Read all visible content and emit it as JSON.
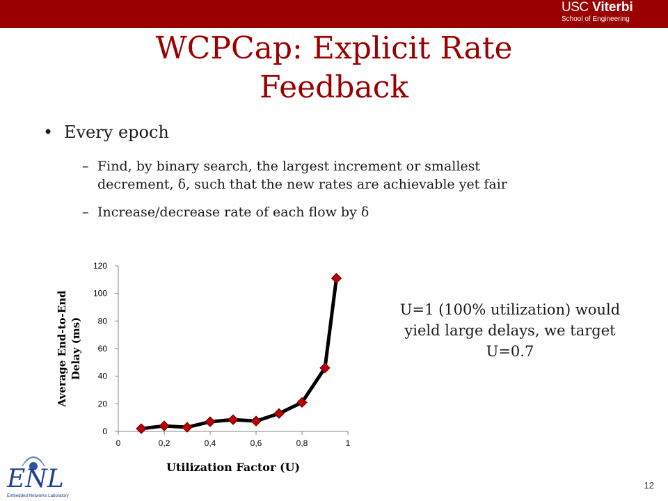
{
  "header": {
    "logo_usc": "USC",
    "logo_viterbi": "Viterbi",
    "logo_school": "School of Engineering"
  },
  "slide": {
    "title_line1": "WCPCap: Explicit Rate",
    "title_line2": "Feedback",
    "bullet1": "Every epoch",
    "sub1": "Find, by binary search, the largest increment or smallest decrement, δ, such that the new rates are achievable yet fair",
    "sub2": "Increase/decrease rate of each flow by δ",
    "dash": "–",
    "dot": "•",
    "note": "U=1 (100% utilization) would yield large delays, we target U=0.7",
    "page_number": "12"
  },
  "footer_logo": {
    "letters": "ENL",
    "caption": "Embedded Networks Laboratory"
  },
  "colors": {
    "brand": "#9b0000",
    "marker": "#c00000",
    "line": "#000000"
  },
  "chart_data": {
    "type": "line",
    "xlabel": "Utilization Factor (U)",
    "ylabel_line1": "Average End-to-End",
    "ylabel_line2": "Delay (ms)",
    "xlim": [
      0,
      1
    ],
    "ylim": [
      0,
      120
    ],
    "x_ticks": [
      "0",
      "0,2",
      "0,4",
      "0,6",
      "0,8",
      "1"
    ],
    "x_tick_values": [
      0,
      0.2,
      0.4,
      0.6,
      0.8,
      1
    ],
    "y_ticks": [
      "0",
      "20",
      "40",
      "60",
      "80",
      "100",
      "120"
    ],
    "y_tick_values": [
      0,
      20,
      40,
      60,
      80,
      100,
      120
    ],
    "grid": false,
    "series": [
      {
        "x": [
          0.1,
          0.2,
          0.3,
          0.4,
          0.5,
          0.6,
          0.7,
          0.8,
          0.9,
          0.95
        ],
        "y": [
          2,
          4,
          3,
          7,
          8.5,
          7.5,
          13,
          21,
          46,
          111
        ]
      }
    ]
  }
}
